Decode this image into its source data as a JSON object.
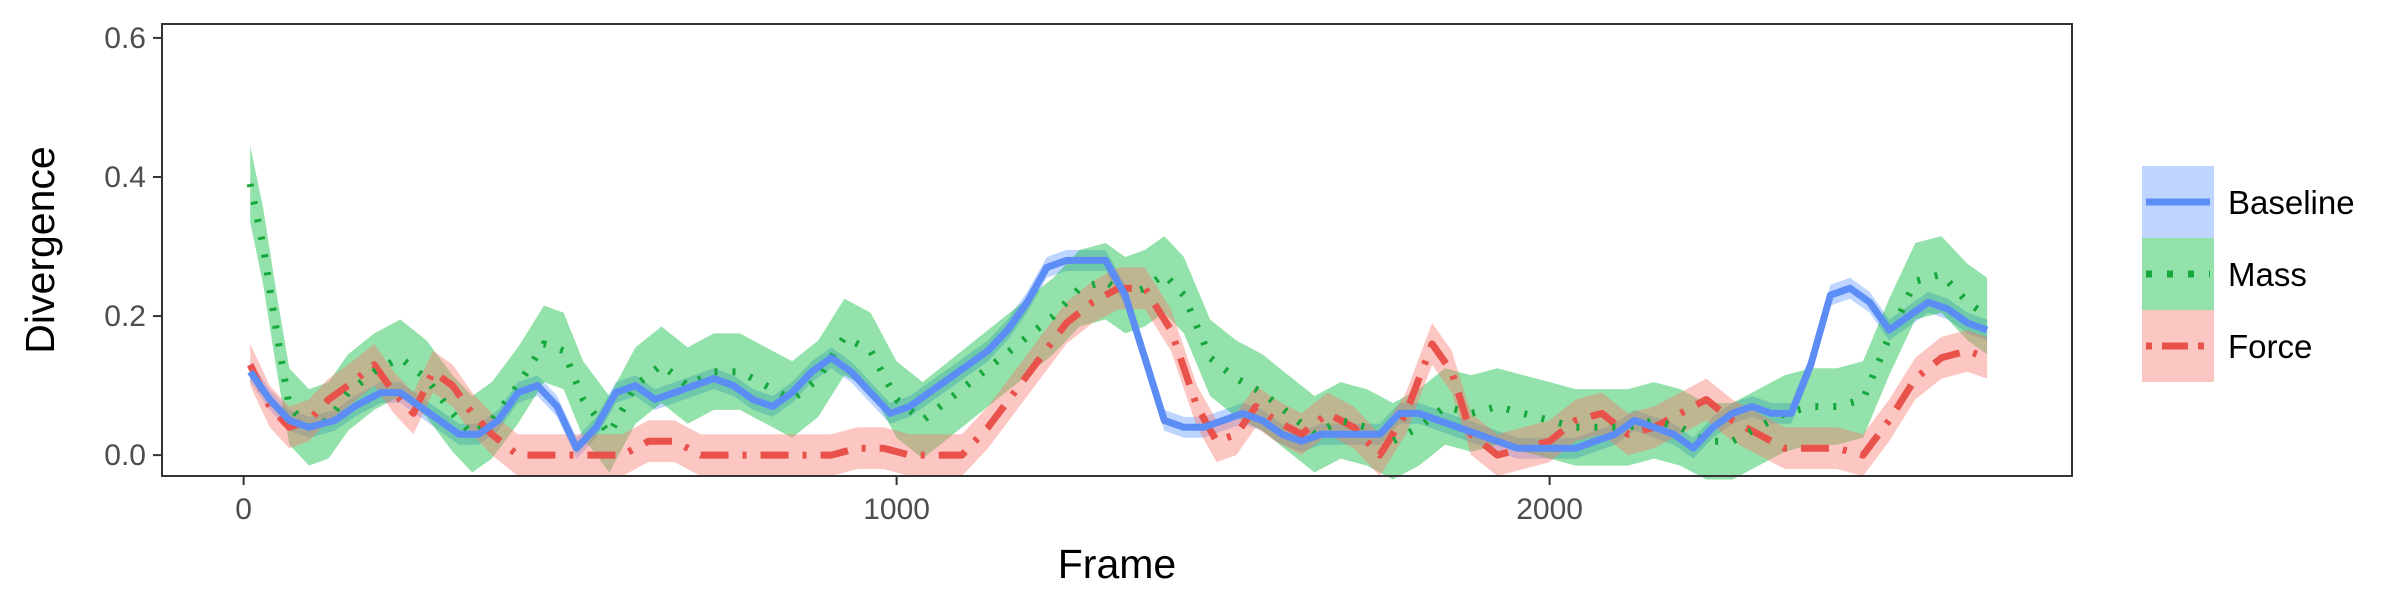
{
  "chart_data": {
    "type": "line",
    "xlabel": "Frame",
    "ylabel": "Divergence",
    "xlim": [
      -125,
      2800
    ],
    "ylim": [
      -0.03,
      0.62
    ],
    "xticks": [
      0,
      1000,
      2000
    ],
    "xtick_labels": [
      "0",
      "1000",
      "2000"
    ],
    "yticks": [
      0.0,
      0.2,
      0.4,
      0.6
    ],
    "ytick_labels": [
      "0.0",
      "0.2",
      "0.4",
      "0.6"
    ],
    "grid": false,
    "legend_position": "right",
    "series": [
      {
        "name": "Baseline",
        "color": "#619CFF",
        "line_color": "#5C8DF5",
        "dash": "solid",
        "x": [
          10,
          40,
          70,
          100,
          140,
          170,
          210,
          240,
          270,
          300,
          330,
          360,
          390,
          420,
          450,
          480,
          510,
          540,
          570,
          600,
          630,
          660,
          690,
          720,
          750,
          780,
          810,
          840,
          870,
          900,
          930,
          960,
          990,
          1020,
          1050,
          1080,
          1110,
          1140,
          1170,
          1200,
          1230,
          1260,
          1290,
          1320,
          1350,
          1380,
          1410,
          1440,
          1470,
          1500,
          1530,
          1560,
          1590,
          1620,
          1650,
          1680,
          1710,
          1740,
          1770,
          1800,
          1830,
          1860,
          1890,
          1920,
          1950,
          1980,
          2010,
          2040,
          2070,
          2100,
          2130,
          2160,
          2190,
          2220,
          2250,
          2280,
          2310,
          2340,
          2370,
          2400,
          2430,
          2460,
          2490,
          2520,
          2550,
          2580,
          2610,
          2640,
          2670
        ],
        "y": [
          0.12,
          0.08,
          0.05,
          0.04,
          0.05,
          0.07,
          0.09,
          0.09,
          0.07,
          0.05,
          0.03,
          0.03,
          0.05,
          0.09,
          0.1,
          0.07,
          0.01,
          0.04,
          0.09,
          0.1,
          0.08,
          0.09,
          0.1,
          0.11,
          0.1,
          0.08,
          0.07,
          0.09,
          0.12,
          0.14,
          0.12,
          0.09,
          0.06,
          0.07,
          0.09,
          0.11,
          0.13,
          0.15,
          0.18,
          0.22,
          0.27,
          0.28,
          0.28,
          0.28,
          0.23,
          0.14,
          0.05,
          0.04,
          0.04,
          0.05,
          0.06,
          0.05,
          0.03,
          0.02,
          0.03,
          0.03,
          0.03,
          0.03,
          0.06,
          0.06,
          0.05,
          0.04,
          0.03,
          0.02,
          0.01,
          0.01,
          0.01,
          0.01,
          0.02,
          0.03,
          0.05,
          0.04,
          0.03,
          0.01,
          0.04,
          0.06,
          0.07,
          0.06,
          0.06,
          0.13,
          0.23,
          0.24,
          0.22,
          0.18,
          0.2,
          0.22,
          0.21,
          0.19,
          0.18
        ],
        "band": 0.015
      },
      {
        "name": "Mass",
        "color": "#00BA38",
        "line_color": "#16A83C",
        "dash": "dotted",
        "x": [
          10,
          30,
          50,
          70,
          100,
          130,
          160,
          200,
          240,
          280,
          320,
          350,
          380,
          420,
          460,
          490,
          520,
          560,
          600,
          640,
          680,
          720,
          760,
          800,
          840,
          880,
          920,
          960,
          1000,
          1040,
          1080,
          1120,
          1160,
          1200,
          1240,
          1280,
          1320,
          1350,
          1380,
          1410,
          1440,
          1480,
          1520,
          1560,
          1600,
          1640,
          1680,
          1720,
          1760,
          1800,
          1840,
          1880,
          1920,
          1960,
          2000,
          2040,
          2080,
          2120,
          2160,
          2200,
          2240,
          2280,
          2320,
          2360,
          2400,
          2440,
          2480,
          2520,
          2560,
          2600,
          2640,
          2670
        ],
        "y": [
          0.39,
          0.3,
          0.18,
          0.07,
          0.04,
          0.05,
          0.09,
          0.12,
          0.14,
          0.11,
          0.06,
          0.03,
          0.05,
          0.1,
          0.16,
          0.15,
          0.08,
          0.03,
          0.1,
          0.13,
          0.1,
          0.12,
          0.12,
          0.1,
          0.08,
          0.11,
          0.17,
          0.15,
          0.08,
          0.05,
          0.08,
          0.11,
          0.14,
          0.17,
          0.2,
          0.24,
          0.25,
          0.23,
          0.24,
          0.26,
          0.23,
          0.14,
          0.11,
          0.09,
          0.06,
          0.03,
          0.05,
          0.04,
          0.02,
          0.04,
          0.07,
          0.06,
          0.07,
          0.06,
          0.05,
          0.04,
          0.04,
          0.04,
          0.05,
          0.04,
          0.02,
          0.02,
          0.04,
          0.06,
          0.07,
          0.07,
          0.08,
          0.17,
          0.25,
          0.26,
          0.22,
          0.2
        ],
        "band": 0.055
      },
      {
        "name": "Force",
        "color": "#F8766D",
        "line_color": "#E9524B",
        "dash": "dashdot",
        "x": [
          10,
          40,
          70,
          100,
          130,
          160,
          200,
          230,
          260,
          290,
          320,
          350,
          380,
          420,
          460,
          500,
          540,
          580,
          620,
          660,
          700,
          740,
          780,
          820,
          860,
          900,
          940,
          980,
          1020,
          1060,
          1100,
          1140,
          1180,
          1220,
          1260,
          1300,
          1340,
          1380,
          1420,
          1460,
          1490,
          1520,
          1550,
          1580,
          1620,
          1660,
          1700,
          1740,
          1780,
          1820,
          1850,
          1880,
          1920,
          1960,
          2000,
          2040,
          2080,
          2120,
          2160,
          2200,
          2240,
          2280,
          2320,
          2360,
          2400,
          2440,
          2480,
          2520,
          2560,
          2600,
          2640,
          2670
        ],
        "y": [
          0.13,
          0.07,
          0.04,
          0.05,
          0.08,
          0.1,
          0.13,
          0.09,
          0.06,
          0.12,
          0.1,
          0.06,
          0.03,
          0.0,
          0.0,
          0.0,
          0.0,
          0.0,
          0.02,
          0.02,
          0.0,
          0.0,
          0.0,
          0.0,
          0.0,
          0.0,
          0.01,
          0.01,
          0.0,
          0.0,
          0.0,
          0.04,
          0.09,
          0.14,
          0.19,
          0.22,
          0.24,
          0.24,
          0.18,
          0.07,
          0.02,
          0.03,
          0.07,
          0.05,
          0.03,
          0.06,
          0.04,
          0.0,
          0.06,
          0.16,
          0.12,
          0.03,
          0.0,
          0.01,
          0.02,
          0.05,
          0.06,
          0.03,
          0.04,
          0.06,
          0.08,
          0.05,
          0.03,
          0.01,
          0.01,
          0.01,
          0.0,
          0.05,
          0.11,
          0.14,
          0.15,
          0.14
        ],
        "band": 0.03
      }
    ]
  }
}
